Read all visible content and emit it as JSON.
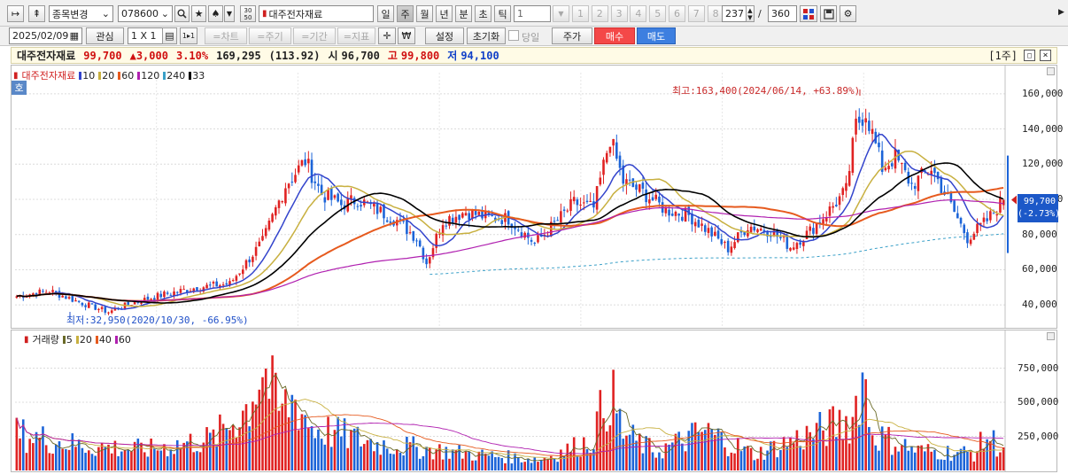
{
  "toolbar": {
    "nav_labels": [
      "↦",
      "⇞"
    ],
    "stock_change_label": "종목변경",
    "stock_code": "078600",
    "stock_name": "대주전자재료",
    "period_buttons": [
      "일",
      "주",
      "월",
      "년",
      "분",
      "초",
      "틱"
    ],
    "selected_period": "주",
    "tick_value": "1",
    "number_buttons": [
      "1",
      "2",
      "3",
      "4",
      "5",
      "6",
      "7",
      "8"
    ],
    "count_current": "237",
    "count_separator": "/",
    "count_total": "360"
  },
  "toolbar2": {
    "date": "2025/02/09",
    "watch_label": "관심",
    "layout_label": "1 X 1",
    "layout_small": "1▸1",
    "chart_add": "=차트",
    "period_add": "=주기",
    "range_add": "=기간",
    "indicator_add": "=지표",
    "settings_label": "설정",
    "reset_label": "초기화",
    "today_label": "당일",
    "price_label": "주가",
    "buy_label": "매수",
    "sell_label": "매도"
  },
  "info": {
    "name": "대주전자재료",
    "price": "99,700",
    "change": "▲3,000",
    "change_pct": "3.10%",
    "volume": "169,295",
    "volume_ratio": "(113.92)",
    "open_label": "시",
    "open": "96,700",
    "high_label": "고",
    "high": "99,800",
    "low_label": "저",
    "low": "94,100",
    "period_tag": "[1주]"
  },
  "price_panel": {
    "badge": "호",
    "legend": {
      "name": "대주전자재료",
      "ma": [
        {
          "label": "10",
          "color": "#3344cc"
        },
        {
          "label": "20",
          "color": "#c8b040"
        },
        {
          "label": "60",
          "color": "#e65a1e"
        },
        {
          "label": "120",
          "color": "#b020b0"
        },
        {
          "label": "240",
          "color": "#3aa0c8"
        },
        {
          "label": "33",
          "color": "#000000"
        }
      ]
    },
    "high_annotation": "최고:163,400(2024/06/14, +63.89%)",
    "low_annotation": "최저:32,950(2020/10/30, -66.95%)",
    "current_price_tag": "99,700",
    "current_change_tag": "(-2.73%)",
    "y_axis_labels": [
      "160,000",
      "140,000",
      "120,000",
      "100,000",
      "80,000",
      "60,000",
      "40,000"
    ]
  },
  "volume_panel": {
    "legend": {
      "name": "거래량",
      "ma": [
        {
          "label": "5",
          "color": "#6a6a28"
        },
        {
          "label": "20",
          "color": "#c8b040"
        },
        {
          "label": "40",
          "color": "#e65a1e"
        },
        {
          "label": "60",
          "color": "#b020b0"
        }
      ]
    },
    "y_axis_labels": [
      "750,000",
      "500,000",
      "250,000"
    ]
  },
  "chart_data": [
    {
      "type": "candlestick",
      "y_axis_ticks": [
        40000,
        60000,
        80000,
        100000,
        120000,
        140000,
        160000
      ],
      "ylim": [
        28000,
        172000
      ],
      "close_anchors": [
        [
          0,
          45000
        ],
        [
          10,
          48000
        ],
        [
          20,
          41000
        ],
        [
          28,
          36000
        ],
        [
          35,
          41000
        ],
        [
          45,
          46000
        ],
        [
          55,
          50000
        ],
        [
          65,
          52000
        ],
        [
          75,
          76000
        ],
        [
          82,
          108000
        ],
        [
          88,
          122000
        ],
        [
          93,
          103000
        ],
        [
          99,
          97000
        ],
        [
          104,
          100000
        ],
        [
          110,
          94000
        ],
        [
          116,
          88000
        ],
        [
          122,
          78000
        ],
        [
          125,
          64000
        ],
        [
          130,
          88000
        ],
        [
          137,
          93000
        ],
        [
          143,
          90000
        ],
        [
          150,
          89000
        ],
        [
          158,
          75000
        ],
        [
          164,
          86000
        ],
        [
          170,
          98000
        ],
        [
          176,
          95000
        ],
        [
          181,
          135000
        ],
        [
          185,
          110000
        ],
        [
          191,
          104000
        ],
        [
          198,
          94000
        ],
        [
          205,
          91000
        ],
        [
          211,
          82000
        ],
        [
          217,
          72000
        ],
        [
          223,
          85000
        ],
        [
          230,
          82000
        ],
        [
          236,
          73000
        ],
        [
          242,
          82000
        ],
        [
          248,
          94000
        ],
        [
          253,
          105000
        ],
        [
          256,
          142000
        ],
        [
          259,
          150000
        ],
        [
          264,
          118000
        ],
        [
          268,
          124000
        ],
        [
          273,
          108000
        ],
        [
          279,
          118000
        ],
        [
          284,
          100000
        ],
        [
          290,
          78000
        ],
        [
          296,
          88000
        ],
        [
          301,
          99700
        ]
      ],
      "last_candle": {
        "open": 96700,
        "high": 99800,
        "low": 94100,
        "close": 99700
      }
    },
    {
      "type": "bar",
      "y_axis_ticks": [
        250000,
        500000,
        750000
      ],
      "ylim": [
        0,
        1000000
      ],
      "volume_anchors": [
        [
          0,
          300000
        ],
        [
          20,
          200000
        ],
        [
          40,
          170000
        ],
        [
          60,
          260000
        ],
        [
          70,
          500000
        ],
        [
          75,
          850000
        ],
        [
          80,
          480000
        ],
        [
          85,
          580000
        ],
        [
          90,
          350000
        ],
        [
          110,
          220000
        ],
        [
          140,
          130000
        ],
        [
          160,
          90000
        ],
        [
          175,
          240000
        ],
        [
          181,
          650000
        ],
        [
          185,
          300000
        ],
        [
          195,
          150000
        ],
        [
          210,
          320000
        ],
        [
          225,
          130000
        ],
        [
          255,
          420000
        ],
        [
          258,
          800000
        ],
        [
          261,
          300000
        ],
        [
          275,
          160000
        ],
        [
          292,
          140000
        ],
        [
          296,
          280000
        ],
        [
          301,
          169295
        ]
      ]
    }
  ]
}
